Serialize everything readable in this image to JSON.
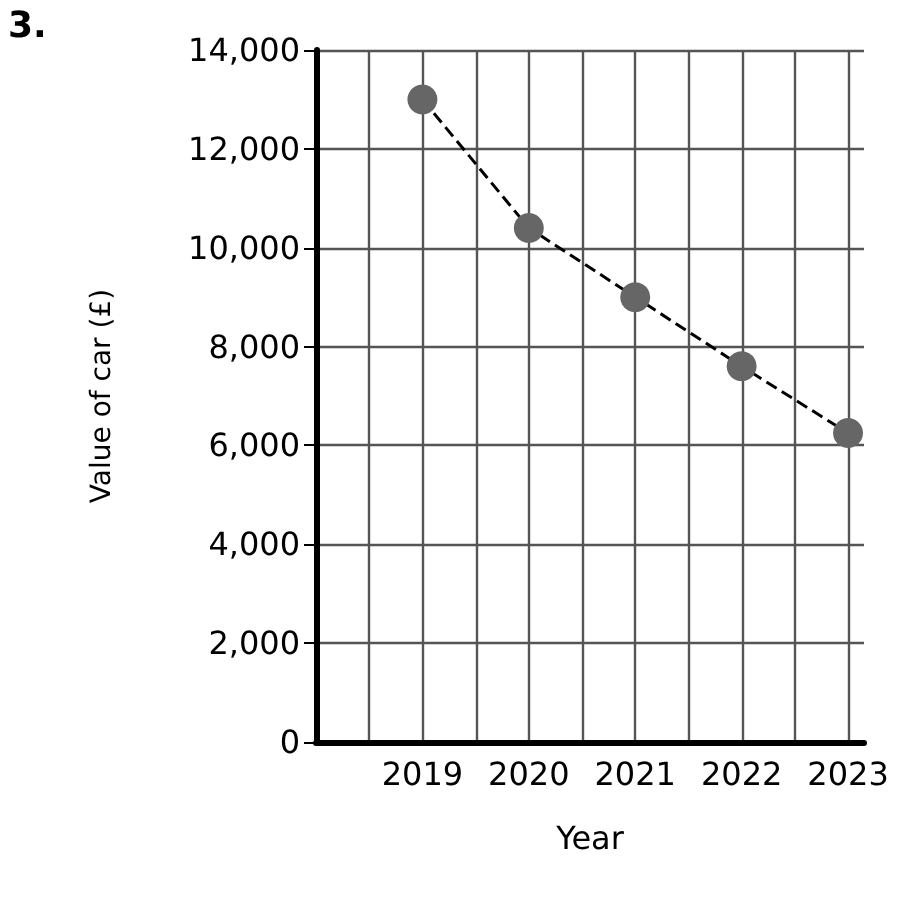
{
  "chart_data": {
    "type": "line",
    "annotations": [
      "3."
    ],
    "xlabel": "Year",
    "ylabel": "Value of car (£)",
    "x": [
      2019,
      2020,
      2021,
      2022,
      2023
    ],
    "series": [
      {
        "color": "#666666",
        "values": [
          13000,
          10400,
          9000,
          7600,
          6250
        ]
      }
    ],
    "xlim": [
      2018,
      2023.15
    ],
    "xticks": [
      {
        "value": 2018.5,
        "label": null
      },
      2019,
      {
        "value": 2019.5,
        "label": null
      },
      2020,
      {
        "value": 2020.5,
        "label": null
      },
      2021,
      {
        "value": 2021.5,
        "label": null
      },
      2022,
      {
        "value": 2022.5,
        "label": null
      },
      2023
    ],
    "ylim": [
      0,
      14000
    ],
    "yticks": [
      0,
      {
        "value": 2000,
        "label": "2,000"
      },
      {
        "value": 4000,
        "label": "4,000"
      },
      {
        "value": 6000,
        "label": "6,000"
      },
      {
        "value": 8000,
        "label": "8,000"
      },
      {
        "value": 10000,
        "label": "10,000"
      },
      {
        "value": 12000,
        "label": "12,000"
      },
      {
        "value": 14000,
        "label": "14,000"
      }
    ],
    "grid": true,
    "marker": "circle",
    "line_style": "dashed"
  }
}
